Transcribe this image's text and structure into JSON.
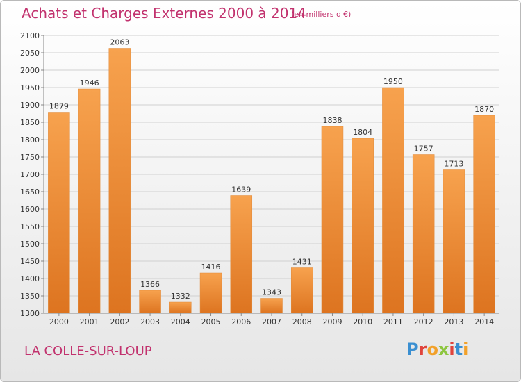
{
  "header": {
    "title": "Achats et Charges Externes 2000 à 2014",
    "subtitle": "(en milliers d'€)"
  },
  "footer": {
    "place": "LA COLLE-SUR-LOUP",
    "brand": "Proxiti"
  },
  "colors": {
    "accent": "#c2326e",
    "bar_light": "#f7a24e",
    "bar_dark": "#dd7420"
  },
  "chart_data": {
    "type": "bar",
    "title": "Achats et Charges Externes 2000 à 2014",
    "subtitle": "(en milliers d'€)",
    "xlabel": "",
    "ylabel": "",
    "categories": [
      "2000",
      "2001",
      "2002",
      "2003",
      "2004",
      "2005",
      "2006",
      "2007",
      "2008",
      "2009",
      "2010",
      "2011",
      "2012",
      "2013",
      "2014"
    ],
    "values": [
      1879,
      1946,
      2063,
      1366,
      1332,
      1416,
      1639,
      1343,
      1431,
      1838,
      1804,
      1950,
      1757,
      1713,
      1870
    ],
    "ylim": [
      1300,
      2100
    ],
    "yticks": [
      1300,
      1350,
      1400,
      1450,
      1500,
      1550,
      1600,
      1650,
      1700,
      1750,
      1800,
      1850,
      1900,
      1950,
      2000,
      2050,
      2100
    ],
    "grid": true,
    "legend": "none"
  }
}
